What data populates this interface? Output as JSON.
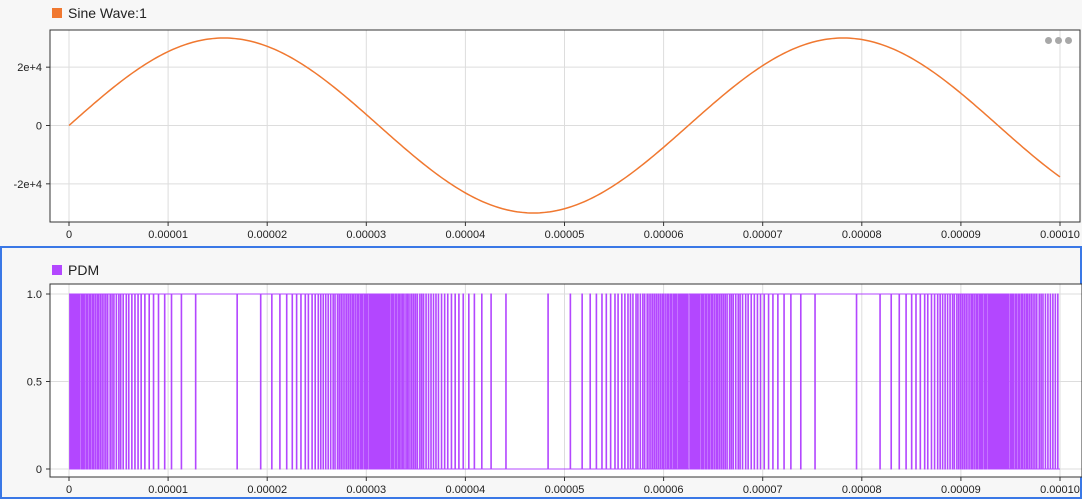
{
  "chart_data": [
    {
      "type": "line",
      "legend": "Sine Wave:1",
      "color": "#f07830",
      "x": {
        "min": 0,
        "max": 0.0001,
        "ticks": [
          0,
          1e-05,
          2e-05,
          3e-05,
          4e-05,
          5e-05,
          6e-05,
          7e-05,
          8e-05,
          9e-05,
          0.0001
        ],
        "tick_labels": [
          "0",
          "0.00001",
          "0.00002",
          "0.00003",
          "0.00004",
          "0.00005",
          "0.00006",
          "0.00007",
          "0.00008",
          "0.00009",
          "0.00010"
        ]
      },
      "y": {
        "min": -30000,
        "max": 30000,
        "ticks": [
          20000,
          0,
          -20000
        ],
        "tick_labels": [
          "2e+4",
          "0",
          "-2e+4"
        ]
      },
      "series": [
        {
          "amplitude": 30000,
          "frequency_hz": 16000,
          "x_start": 0,
          "x_end": 0.0001
        }
      ],
      "grid": true,
      "legend_position": "top-left"
    },
    {
      "type": "line",
      "legend": "PDM",
      "color": "#b347ff",
      "x": {
        "min": 0,
        "max": 0.0001,
        "ticks": [
          0,
          1e-05,
          2e-05,
          3e-05,
          4e-05,
          5e-05,
          6e-05,
          7e-05,
          8e-05,
          9e-05,
          0.0001
        ],
        "tick_labels": [
          "0",
          "0.00001",
          "0.00002",
          "0.00003",
          "0.00004",
          "0.00005",
          "0.00006",
          "0.00007",
          "0.00008",
          "0.00009",
          "0.00010"
        ]
      },
      "y": {
        "min": 0,
        "max": 1,
        "ticks": [
          1,
          0.5,
          0
        ],
        "tick_labels": [
          "1.0",
          "0.5",
          "0"
        ]
      },
      "series": [
        {
          "kind": "pulse-density",
          "source": "Sine Wave:1"
        }
      ],
      "grid": true,
      "legend_position": "top-left"
    }
  ]
}
